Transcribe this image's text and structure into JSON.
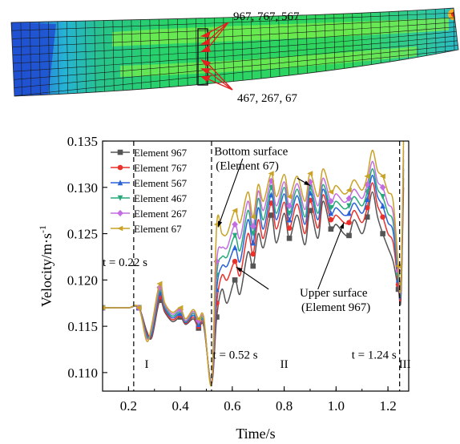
{
  "fe_model": {
    "top_label": "967, 767, 567",
    "bottom_label": "467, 267, 67",
    "colors": {
      "blue": "#1f4fd1",
      "cyan": "#25b3d6",
      "green": "#27d36a",
      "lime": "#7cf04a",
      "mesh": "#1a1a1a",
      "arrow": "#e51e1e"
    }
  },
  "chart_data": {
    "type": "line",
    "xlabel": "Time/s",
    "ylabel": "Velocity/m·s",
    "ylabel_sup": "-1",
    "xlim": [
      0.1,
      1.28
    ],
    "ylim": [
      0.108,
      0.135
    ],
    "xticks": [
      0.2,
      0.4,
      0.6,
      0.8,
      1.0,
      1.2
    ],
    "xtick_labels": [
      "0.2",
      "0.4",
      "0.6",
      "0.8",
      "1.0",
      "1.2"
    ],
    "yticks": [
      0.11,
      0.115,
      0.12,
      0.125,
      0.13,
      0.135
    ],
    "ytick_labels": [
      "0.110",
      "0.115",
      "0.120",
      "0.125",
      "0.130",
      "0.135"
    ],
    "grid": false,
    "legend": "top-left",
    "series": [
      {
        "name": "Element 967",
        "color": "#555555",
        "marker": "square",
        "x": [
          0.1,
          0.15,
          0.2,
          0.24,
          0.27,
          0.29,
          0.32,
          0.34,
          0.37,
          0.4,
          0.42,
          0.45,
          0.47,
          0.49,
          0.52,
          0.54,
          0.56,
          0.58,
          0.61,
          0.63,
          0.66,
          0.68,
          0.7,
          0.72,
          0.75,
          0.77,
          0.8,
          0.82,
          0.85,
          0.88,
          0.9,
          0.93,
          0.95,
          0.98,
          1.0,
          1.03,
          1.05,
          1.07,
          1.1,
          1.12,
          1.14,
          1.16,
          1.18,
          1.2,
          1.22,
          1.24,
          1.25,
          1.26
        ],
        "y": [
          0.117,
          0.117,
          0.117,
          0.117,
          0.1145,
          0.1138,
          0.1178,
          0.1165,
          0.1155,
          0.116,
          0.1152,
          0.1158,
          0.1148,
          0.115,
          0.1088,
          0.116,
          0.119,
          0.1175,
          0.12,
          0.1185,
          0.123,
          0.1215,
          0.125,
          0.1235,
          0.127,
          0.124,
          0.1272,
          0.1245,
          0.127,
          0.1238,
          0.1275,
          0.1245,
          0.1285,
          0.1255,
          0.126,
          0.125,
          0.1248,
          0.1265,
          0.125,
          0.1268,
          0.1295,
          0.1268,
          0.125,
          0.1235,
          0.122,
          0.119,
          0.118,
          0.13
        ]
      },
      {
        "name": "Element 767",
        "color": "#e8322b",
        "marker": "circle",
        "x": [
          0.1,
          0.15,
          0.2,
          0.24,
          0.27,
          0.29,
          0.32,
          0.34,
          0.37,
          0.4,
          0.42,
          0.45,
          0.47,
          0.49,
          0.52,
          0.54,
          0.56,
          0.58,
          0.61,
          0.63,
          0.66,
          0.68,
          0.7,
          0.72,
          0.75,
          0.77,
          0.8,
          0.82,
          0.85,
          0.88,
          0.9,
          0.93,
          0.95,
          0.98,
          1.0,
          1.03,
          1.05,
          1.07,
          1.1,
          1.12,
          1.14,
          1.16,
          1.18,
          1.2,
          1.22,
          1.24,
          1.25,
          1.26
        ],
        "y": [
          0.117,
          0.117,
          0.117,
          0.117,
          0.1143,
          0.114,
          0.1182,
          0.1167,
          0.1157,
          0.1162,
          0.1153,
          0.116,
          0.115,
          0.1152,
          0.1088,
          0.1175,
          0.1205,
          0.12,
          0.122,
          0.1205,
          0.125,
          0.1228,
          0.1265,
          0.1245,
          0.1283,
          0.1255,
          0.1284,
          0.1256,
          0.1282,
          0.125,
          0.1286,
          0.1256,
          0.1292,
          0.1265,
          0.127,
          0.1262,
          0.1262,
          0.1275,
          0.1262,
          0.1278,
          0.1305,
          0.128,
          0.1268,
          0.125,
          0.124,
          0.1195,
          0.1185,
          0.131
        ]
      },
      {
        "name": "Element 567",
        "color": "#2a62d8",
        "marker": "triangle-up",
        "x": [
          0.1,
          0.15,
          0.2,
          0.24,
          0.27,
          0.29,
          0.32,
          0.34,
          0.37,
          0.4,
          0.42,
          0.45,
          0.47,
          0.49,
          0.52,
          0.54,
          0.56,
          0.58,
          0.61,
          0.63,
          0.66,
          0.68,
          0.7,
          0.72,
          0.75,
          0.77,
          0.8,
          0.82,
          0.85,
          0.88,
          0.9,
          0.93,
          0.95,
          0.98,
          1.0,
          1.03,
          1.05,
          1.07,
          1.1,
          1.12,
          1.14,
          1.16,
          1.18,
          1.2,
          1.22,
          1.24,
          1.25,
          1.26
        ],
        "y": [
          0.117,
          0.117,
          0.117,
          0.117,
          0.1141,
          0.1142,
          0.1186,
          0.1169,
          0.1159,
          0.1164,
          0.1154,
          0.1162,
          0.1152,
          0.1154,
          0.1088,
          0.119,
          0.1215,
          0.1215,
          0.1235,
          0.122,
          0.1265,
          0.124,
          0.1278,
          0.1255,
          0.1292,
          0.1265,
          0.1293,
          0.1265,
          0.1291,
          0.126,
          0.1294,
          0.1265,
          0.1298,
          0.1272,
          0.1278,
          0.127,
          0.1272,
          0.1283,
          0.1272,
          0.1287,
          0.1313,
          0.129,
          0.128,
          0.1262,
          0.1252,
          0.12,
          0.1188,
          0.132
        ]
      },
      {
        "name": "Element 467",
        "color": "#27a97a",
        "marker": "triangle-down",
        "x": [
          0.1,
          0.15,
          0.2,
          0.24,
          0.27,
          0.29,
          0.32,
          0.34,
          0.37,
          0.4,
          0.42,
          0.45,
          0.47,
          0.49,
          0.52,
          0.54,
          0.56,
          0.58,
          0.61,
          0.63,
          0.66,
          0.68,
          0.7,
          0.72,
          0.75,
          0.77,
          0.8,
          0.82,
          0.85,
          0.88,
          0.9,
          0.93,
          0.95,
          0.98,
          1.0,
          1.03,
          1.05,
          1.07,
          1.1,
          1.12,
          1.14,
          1.16,
          1.18,
          1.2,
          1.22,
          1.24,
          1.25,
          1.26
        ],
        "y": [
          0.117,
          0.117,
          0.117,
          0.117,
          0.1139,
          0.1145,
          0.1189,
          0.1171,
          0.1161,
          0.1166,
          0.1155,
          0.1164,
          0.1154,
          0.1156,
          0.1088,
          0.1205,
          0.1225,
          0.1225,
          0.1248,
          0.1232,
          0.1275,
          0.125,
          0.1288,
          0.1265,
          0.13,
          0.1272,
          0.13,
          0.1272,
          0.1298,
          0.1268,
          0.13,
          0.1272,
          0.1303,
          0.1278,
          0.1285,
          0.1277,
          0.128,
          0.129,
          0.128,
          0.1295,
          0.132,
          0.1298,
          0.129,
          0.1272,
          0.1262,
          0.1205,
          0.119,
          0.133
        ]
      },
      {
        "name": "Element 267",
        "color": "#c36ee0",
        "marker": "diamond",
        "x": [
          0.1,
          0.15,
          0.2,
          0.24,
          0.27,
          0.29,
          0.32,
          0.34,
          0.37,
          0.4,
          0.42,
          0.45,
          0.47,
          0.49,
          0.52,
          0.54,
          0.56,
          0.58,
          0.61,
          0.63,
          0.66,
          0.68,
          0.7,
          0.72,
          0.75,
          0.77,
          0.8,
          0.82,
          0.85,
          0.88,
          0.9,
          0.93,
          0.95,
          0.98,
          1.0,
          1.03,
          1.05,
          1.07,
          1.1,
          1.12,
          1.14,
          1.16,
          1.18,
          1.2,
          1.22,
          1.24,
          1.25,
          1.26
        ],
        "y": [
          0.117,
          0.117,
          0.117,
          0.117,
          0.1137,
          0.1148,
          0.1192,
          0.1173,
          0.1163,
          0.1168,
          0.1156,
          0.1166,
          0.1156,
          0.1158,
          0.1088,
          0.122,
          0.1235,
          0.1235,
          0.126,
          0.1245,
          0.1285,
          0.1258,
          0.1296,
          0.1275,
          0.1307,
          0.128,
          0.1306,
          0.128,
          0.1304,
          0.1276,
          0.1306,
          0.128,
          0.131,
          0.1285,
          0.1293,
          0.1284,
          0.1288,
          0.1298,
          0.1288,
          0.1303,
          0.1328,
          0.1306,
          0.13,
          0.1282,
          0.1272,
          0.121,
          0.1193,
          0.134
        ]
      },
      {
        "name": "Element 67",
        "color": "#c9a227",
        "marker": "triangle-left",
        "x": [
          0.1,
          0.15,
          0.2,
          0.24,
          0.27,
          0.29,
          0.32,
          0.34,
          0.37,
          0.4,
          0.42,
          0.45,
          0.47,
          0.49,
          0.52,
          0.54,
          0.56,
          0.58,
          0.61,
          0.63,
          0.66,
          0.68,
          0.7,
          0.72,
          0.75,
          0.77,
          0.8,
          0.82,
          0.85,
          0.88,
          0.9,
          0.93,
          0.95,
          0.98,
          1.0,
          1.03,
          1.05,
          1.07,
          1.1,
          1.12,
          1.14,
          1.16,
          1.18,
          1.2,
          1.22,
          1.24,
          1.25,
          1.26
        ],
        "y": [
          0.117,
          0.117,
          0.117,
          0.117,
          0.1134,
          0.1152,
          0.1196,
          0.1175,
          0.1165,
          0.117,
          0.1158,
          0.1168,
          0.1158,
          0.116,
          0.1088,
          0.126,
          0.125,
          0.125,
          0.1275,
          0.1262,
          0.1295,
          0.1268,
          0.1303,
          0.1285,
          0.1315,
          0.129,
          0.1314,
          0.129,
          0.1312,
          0.1285,
          0.1315,
          0.129,
          0.132,
          0.1295,
          0.1302,
          0.1293,
          0.1297,
          0.1308,
          0.1297,
          0.1312,
          0.134,
          0.1318,
          0.1312,
          0.1295,
          0.1285,
          0.1215,
          0.1195,
          0.135
        ]
      }
    ],
    "vlines": [
      {
        "x": 0.22,
        "label": "t = 0.22 s",
        "label_x": 0.1,
        "label_y": 0.1215
      },
      {
        "x": 0.52,
        "label": "t = 0.52 s",
        "label_x": 0.525,
        "label_y": 0.1115
      },
      {
        "x": 1.245,
        "label": "t = 1.24 s",
        "label_x": 1.06,
        "label_y": 0.1115
      }
    ],
    "regions": [
      {
        "label": "I",
        "x": 0.27,
        "y": 0.1105
      },
      {
        "label": "II",
        "x": 0.8,
        "y": 0.1105
      },
      {
        "label": "III",
        "x": 1.265,
        "y": 0.1105
      }
    ],
    "annotations": [
      {
        "lines": [
          "Bottom surface",
          "(Element 67)"
        ],
        "text_x": 0.53,
        "text_y": 0.1335
      },
      {
        "lines": [
          "Upper surface",
          "(Element 967)"
        ],
        "text_x": 0.86,
        "text_y": 0.1182
      }
    ]
  }
}
